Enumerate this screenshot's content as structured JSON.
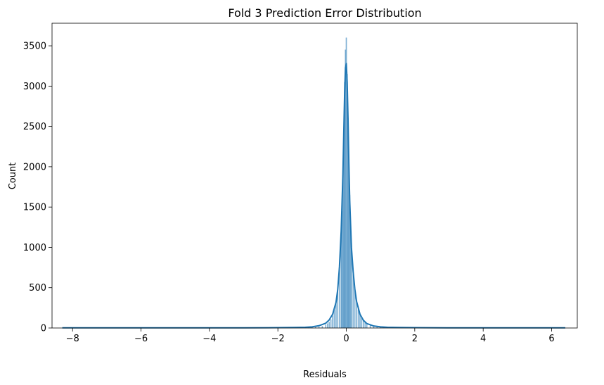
{
  "chart_data": {
    "type": "histogram",
    "title": "Fold 3 Prediction Error Distribution",
    "xlabel": "Residuals",
    "ylabel": "Count",
    "xlim": [
      -8.6,
      6.75
    ],
    "ylim": [
      0,
      3780
    ],
    "x_ticks": [
      -8,
      -6,
      -4,
      -2,
      0,
      2,
      4,
      6
    ],
    "x_tick_labels": [
      "−8",
      "−6",
      "−4",
      "−2",
      "0",
      "2",
      "4",
      "6"
    ],
    "y_ticks": [
      0,
      500,
      1000,
      1500,
      2000,
      2500,
      3000,
      3500
    ],
    "y_tick_labels": [
      "0",
      "500",
      "1000",
      "1500",
      "2000",
      "2500",
      "3000",
      "3500"
    ],
    "grid": false,
    "legend": "none",
    "histogram": {
      "bin_width": 0.025,
      "bins": [
        {
          "x": -1.2,
          "count": 3
        },
        {
          "x": -1.1,
          "count": 4
        },
        {
          "x": -1.0,
          "count": 6
        },
        {
          "x": -0.9,
          "count": 9
        },
        {
          "x": -0.8,
          "count": 13
        },
        {
          "x": -0.7,
          "count": 22
        },
        {
          "x": -0.6,
          "count": 40
        },
        {
          "x": -0.55,
          "count": 55
        },
        {
          "x": -0.5,
          "count": 75
        },
        {
          "x": -0.45,
          "count": 105
        },
        {
          "x": -0.4,
          "count": 150
        },
        {
          "x": -0.35,
          "count": 220
        },
        {
          "x": -0.3,
          "count": 330
        },
        {
          "x": -0.25,
          "count": 500
        },
        {
          "x": -0.2,
          "count": 760
        },
        {
          "x": -0.15,
          "count": 1150
        },
        {
          "x": -0.125,
          "count": 1450
        },
        {
          "x": -0.1,
          "count": 1900
        },
        {
          "x": -0.075,
          "count": 2450
        },
        {
          "x": -0.05,
          "count": 3050
        },
        {
          "x": -0.025,
          "count": 3450
        },
        {
          "x": 0.0,
          "count": 3600
        },
        {
          "x": 0.025,
          "count": 3150
        },
        {
          "x": 0.05,
          "count": 2600
        },
        {
          "x": 0.075,
          "count": 2050
        },
        {
          "x": 0.1,
          "count": 1650
        },
        {
          "x": 0.125,
          "count": 1300
        },
        {
          "x": 0.15,
          "count": 1050
        },
        {
          "x": 0.2,
          "count": 720
        },
        {
          "x": 0.25,
          "count": 480
        },
        {
          "x": 0.3,
          "count": 330
        },
        {
          "x": 0.35,
          "count": 230
        },
        {
          "x": 0.4,
          "count": 165
        },
        {
          "x": 0.45,
          "count": 120
        },
        {
          "x": 0.5,
          "count": 88
        },
        {
          "x": 0.55,
          "count": 65
        },
        {
          "x": 0.6,
          "count": 48
        },
        {
          "x": 0.7,
          "count": 30
        },
        {
          "x": 0.8,
          "count": 20
        },
        {
          "x": 0.9,
          "count": 14
        },
        {
          "x": 1.0,
          "count": 10
        },
        {
          "x": 1.1,
          "count": 7
        },
        {
          "x": 1.2,
          "count": 5
        }
      ]
    },
    "kde": {
      "x": [
        -8.3,
        -6,
        -4,
        -3,
        -2,
        -1.5,
        -1.2,
        -1.0,
        -0.8,
        -0.6,
        -0.5,
        -0.4,
        -0.3,
        -0.25,
        -0.2,
        -0.15,
        -0.1,
        -0.075,
        -0.05,
        -0.025,
        0.0,
        0.025,
        0.05,
        0.075,
        0.1,
        0.15,
        0.2,
        0.25,
        0.3,
        0.4,
        0.5,
        0.6,
        0.8,
        1.0,
        1.2,
        1.5,
        2,
        3,
        4,
        5,
        6,
        6.4
      ],
      "y": [
        2,
        2,
        2,
        2,
        4,
        6,
        9,
        14,
        28,
        60,
        100,
        170,
        320,
        480,
        760,
        1200,
        1900,
        2400,
        2900,
        3230,
        3280,
        3050,
        2600,
        2050,
        1580,
        1000,
        700,
        480,
        330,
        170,
        95,
        55,
        25,
        14,
        9,
        6,
        4,
        2,
        2,
        2,
        2,
        2
      ]
    },
    "colors": {
      "bar_fill": "#1f77b4",
      "line": "#1f77b4",
      "axis": "#000000"
    }
  }
}
